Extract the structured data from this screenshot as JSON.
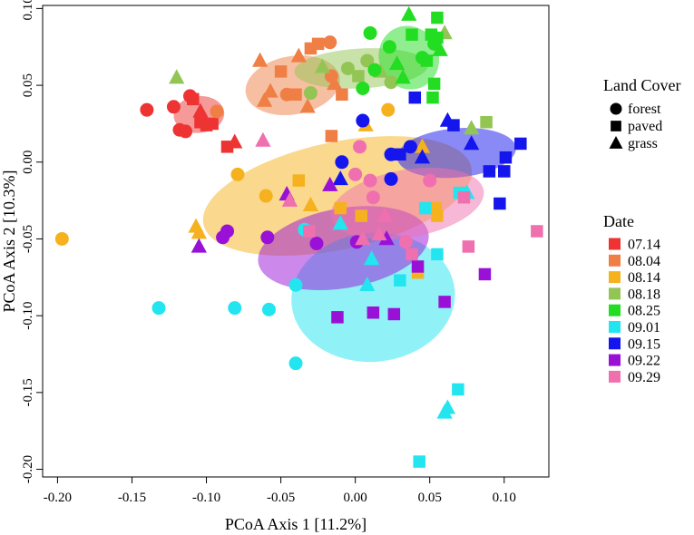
{
  "chart_data": {
    "type": "scatter",
    "title": "",
    "xlabel": "PCoA Axis 1 [11.2%]",
    "ylabel": "PCoA Axis 2 [10.3%]",
    "xlim": [
      -0.21,
      0.13
    ],
    "ylim": [
      -0.205,
      0.102
    ],
    "xticks": [
      -0.2,
      -0.15,
      -0.1,
      -0.05,
      0.0,
      0.05,
      0.1
    ],
    "xtick_labels": [
      "-0.20",
      "-0.15",
      "-0.10",
      "-0.05",
      "0.00",
      "0.05",
      "0.10"
    ],
    "yticks": [
      -0.2,
      -0.15,
      -0.1,
      -0.05,
      0.0,
      0.05,
      0.1
    ],
    "ytick_labels": [
      "-0.20",
      "-0.15",
      "-0.10",
      "-0.05",
      "0.00",
      "0.05",
      "0.10"
    ],
    "grid": false,
    "legend_landcover": {
      "title": "Land Cover",
      "items": [
        {
          "label": "forest",
          "shape": "circle"
        },
        {
          "label": "paved",
          "shape": "square"
        },
        {
          "label": "grass",
          "shape": "triangle"
        }
      ]
    },
    "legend_date": {
      "title": "Date",
      "items": [
        {
          "label": "07.14",
          "color": "#EE3333"
        },
        {
          "label": "08.04",
          "color": "#F07F45"
        },
        {
          "label": "08.14",
          "color": "#F5B21E"
        },
        {
          "label": "08.18",
          "color": "#93C555"
        },
        {
          "label": "08.25",
          "color": "#22DD22"
        },
        {
          "label": "09.01",
          "color": "#22E5F0"
        },
        {
          "label": "09.15",
          "color": "#1515EE"
        },
        {
          "label": "09.22",
          "color": "#9911D6"
        },
        {
          "label": "09.29",
          "color": "#F06FAF"
        }
      ]
    },
    "series": [
      {
        "name": "07.14",
        "color": "#EE3333",
        "ellipse": {
          "cx": -0.105,
          "cy": 0.031,
          "rx": 0.017,
          "ry": 0.012,
          "angle": -5
        },
        "points": [
          {
            "x": -0.14,
            "y": 0.034,
            "shape": "circle"
          },
          {
            "x": -0.122,
            "y": 0.036,
            "shape": "circle"
          },
          {
            "x": -0.118,
            "y": 0.021,
            "shape": "circle"
          },
          {
            "x": -0.114,
            "y": 0.02,
            "shape": "circle"
          },
          {
            "x": -0.111,
            "y": 0.043,
            "shape": "circle"
          },
          {
            "x": -0.109,
            "y": 0.041,
            "shape": "square"
          },
          {
            "x": -0.104,
            "y": 0.026,
            "shape": "square"
          },
          {
            "x": -0.1,
            "y": 0.024,
            "shape": "square"
          },
          {
            "x": -0.096,
            "y": 0.025,
            "shape": "square"
          },
          {
            "x": -0.104,
            "y": 0.033,
            "shape": "triangle"
          },
          {
            "x": -0.086,
            "y": 0.01,
            "shape": "square"
          },
          {
            "x": -0.081,
            "y": 0.013,
            "shape": "triangle"
          }
        ]
      },
      {
        "name": "08.04",
        "color": "#F07F45",
        "ellipse": {
          "cx": -0.042,
          "cy": 0.05,
          "rx": 0.032,
          "ry": 0.019,
          "angle": -10
        },
        "points": [
          {
            "x": -0.093,
            "y": 0.033,
            "shape": "circle"
          },
          {
            "x": -0.064,
            "y": 0.066,
            "shape": "triangle"
          },
          {
            "x": -0.061,
            "y": 0.04,
            "shape": "triangle"
          },
          {
            "x": -0.057,
            "y": 0.046,
            "shape": "triangle"
          },
          {
            "x": -0.05,
            "y": 0.059,
            "shape": "square"
          },
          {
            "x": -0.046,
            "y": 0.044,
            "shape": "circle"
          },
          {
            "x": -0.04,
            "y": 0.044,
            "shape": "square"
          },
          {
            "x": -0.038,
            "y": 0.069,
            "shape": "triangle"
          },
          {
            "x": -0.032,
            "y": 0.036,
            "shape": "triangle"
          },
          {
            "x": -0.03,
            "y": 0.074,
            "shape": "square"
          },
          {
            "x": -0.025,
            "y": 0.077,
            "shape": "square"
          },
          {
            "x": -0.017,
            "y": 0.078,
            "shape": "circle"
          },
          {
            "x": -0.016,
            "y": 0.056,
            "shape": "circle"
          },
          {
            "x": -0.014,
            "y": 0.051,
            "shape": "triangle"
          },
          {
            "x": -0.009,
            "y": 0.044,
            "shape": "square"
          },
          {
            "x": -0.016,
            "y": 0.017,
            "shape": "square"
          }
        ]
      },
      {
        "name": "08.14",
        "color": "#F5B21E",
        "ellipse": {
          "cx": -0.012,
          "cy": -0.022,
          "rx": 0.092,
          "ry": 0.035,
          "angle": -12
        },
        "points": [
          {
            "x": -0.197,
            "y": -0.05,
            "shape": "circle"
          },
          {
            "x": -0.107,
            "y": -0.042,
            "shape": "triangle"
          },
          {
            "x": -0.105,
            "y": -0.046,
            "shape": "triangle"
          },
          {
            "x": -0.079,
            "y": -0.008,
            "shape": "circle"
          },
          {
            "x": -0.06,
            "y": -0.022,
            "shape": "circle"
          },
          {
            "x": -0.038,
            "y": -0.012,
            "shape": "square"
          },
          {
            "x": -0.03,
            "y": -0.028,
            "shape": "triangle"
          },
          {
            "x": -0.01,
            "y": -0.03,
            "shape": "square"
          },
          {
            "x": 0.004,
            "y": -0.035,
            "shape": "square"
          },
          {
            "x": 0.007,
            "y": 0.024,
            "shape": "triangle"
          },
          {
            "x": 0.022,
            "y": 0.034,
            "shape": "circle"
          },
          {
            "x": 0.045,
            "y": 0.01,
            "shape": "triangle"
          },
          {
            "x": 0.054,
            "y": -0.03,
            "shape": "square"
          },
          {
            "x": 0.055,
            "y": -0.035,
            "shape": "square"
          },
          {
            "x": 0.042,
            "y": -0.072,
            "shape": "square"
          }
        ]
      },
      {
        "name": "08.18",
        "color": "#93C555",
        "ellipse": {
          "cx": 0.004,
          "cy": 0.061,
          "rx": 0.045,
          "ry": 0.013,
          "angle": -3
        },
        "points": [
          {
            "x": -0.12,
            "y": 0.055,
            "shape": "triangle"
          },
          {
            "x": -0.03,
            "y": 0.045,
            "shape": "circle"
          },
          {
            "x": -0.022,
            "y": 0.062,
            "shape": "triangle"
          },
          {
            "x": -0.005,
            "y": 0.061,
            "shape": "circle"
          },
          {
            "x": 0.002,
            "y": 0.056,
            "shape": "square"
          },
          {
            "x": 0.008,
            "y": 0.066,
            "shape": "circle"
          },
          {
            "x": 0.017,
            "y": 0.059,
            "shape": "triangle"
          },
          {
            "x": 0.024,
            "y": 0.052,
            "shape": "circle"
          },
          {
            "x": 0.06,
            "y": 0.084,
            "shape": "triangle"
          },
          {
            "x": 0.078,
            "y": 0.022,
            "shape": "triangle"
          },
          {
            "x": 0.088,
            "y": 0.026,
            "shape": "square"
          }
        ]
      },
      {
        "name": "08.25",
        "color": "#22DD22",
        "ellipse": {
          "cx": 0.036,
          "cy": 0.068,
          "rx": 0.02,
          "ry": 0.021,
          "angle": -25
        },
        "points": [
          {
            "x": 0.01,
            "y": 0.084,
            "shape": "circle"
          },
          {
            "x": 0.013,
            "y": 0.06,
            "shape": "circle"
          },
          {
            "x": 0.023,
            "y": 0.075,
            "shape": "circle"
          },
          {
            "x": 0.028,
            "y": 0.064,
            "shape": "triangle"
          },
          {
            "x": 0.032,
            "y": 0.055,
            "shape": "triangle"
          },
          {
            "x": 0.036,
            "y": 0.096,
            "shape": "triangle"
          },
          {
            "x": 0.038,
            "y": 0.083,
            "shape": "square"
          },
          {
            "x": 0.045,
            "y": 0.068,
            "shape": "circle"
          },
          {
            "x": 0.051,
            "y": 0.083,
            "shape": "square"
          },
          {
            "x": 0.055,
            "y": 0.094,
            "shape": "square"
          },
          {
            "x": 0.055,
            "y": 0.081,
            "shape": "square"
          },
          {
            "x": 0.053,
            "y": 0.077,
            "shape": "circle"
          },
          {
            "x": 0.057,
            "y": 0.073,
            "shape": "triangle"
          },
          {
            "x": 0.048,
            "y": 0.066,
            "shape": "square"
          },
          {
            "x": 0.053,
            "y": 0.051,
            "shape": "square"
          },
          {
            "x": 0.052,
            "y": 0.042,
            "shape": "square"
          },
          {
            "x": 0.005,
            "y": 0.048,
            "shape": "circle"
          }
        ]
      },
      {
        "name": "09.01",
        "color": "#22E5F0",
        "ellipse": {
          "cx": 0.012,
          "cy": -0.088,
          "rx": 0.055,
          "ry": 0.042,
          "angle": -5
        },
        "points": [
          {
            "x": -0.132,
            "y": -0.095,
            "shape": "circle"
          },
          {
            "x": -0.081,
            "y": -0.095,
            "shape": "circle"
          },
          {
            "x": -0.058,
            "y": -0.096,
            "shape": "circle"
          },
          {
            "x": -0.04,
            "y": -0.131,
            "shape": "circle"
          },
          {
            "x": -0.04,
            "y": -0.08,
            "shape": "circle"
          },
          {
            "x": -0.034,
            "y": -0.044,
            "shape": "circle"
          },
          {
            "x": -0.01,
            "y": -0.04,
            "shape": "triangle"
          },
          {
            "x": 0.008,
            "y": -0.08,
            "shape": "triangle"
          },
          {
            "x": 0.011,
            "y": -0.063,
            "shape": "triangle"
          },
          {
            "x": 0.03,
            "y": -0.077,
            "shape": "square"
          },
          {
            "x": 0.047,
            "y": -0.03,
            "shape": "square"
          },
          {
            "x": 0.055,
            "y": -0.06,
            "shape": "square"
          },
          {
            "x": 0.043,
            "y": -0.195,
            "shape": "square"
          },
          {
            "x": 0.06,
            "y": -0.163,
            "shape": "triangle"
          },
          {
            "x": 0.062,
            "y": -0.16,
            "shape": "triangle"
          },
          {
            "x": 0.069,
            "y": -0.148,
            "shape": "square"
          },
          {
            "x": 0.07,
            "y": -0.02,
            "shape": "square"
          },
          {
            "x": 0.075,
            "y": -0.02,
            "shape": "triangle"
          }
        ]
      },
      {
        "name": "09.15",
        "color": "#1515EE",
        "ellipse": {
          "cx": 0.068,
          "cy": 0.006,
          "rx": 0.04,
          "ry": 0.016,
          "angle": -5
        },
        "points": [
          {
            "x": -0.009,
            "y": 0.0,
            "shape": "circle"
          },
          {
            "x": -0.01,
            "y": -0.011,
            "shape": "triangle"
          },
          {
            "x": 0.005,
            "y": 0.027,
            "shape": "circle"
          },
          {
            "x": 0.024,
            "y": -0.011,
            "shape": "circle"
          },
          {
            "x": 0.024,
            "y": 0.005,
            "shape": "circle"
          },
          {
            "x": 0.03,
            "y": 0.005,
            "shape": "square"
          },
          {
            "x": 0.037,
            "y": 0.01,
            "shape": "circle"
          },
          {
            "x": 0.04,
            "y": 0.042,
            "shape": "square"
          },
          {
            "x": 0.045,
            "y": 0.003,
            "shape": "triangle"
          },
          {
            "x": 0.062,
            "y": 0.027,
            "shape": "triangle"
          },
          {
            "x": 0.066,
            "y": 0.024,
            "shape": "square"
          },
          {
            "x": 0.078,
            "y": 0.012,
            "shape": "triangle"
          },
          {
            "x": 0.09,
            "y": -0.006,
            "shape": "square"
          },
          {
            "x": 0.097,
            "y": -0.027,
            "shape": "square"
          },
          {
            "x": 0.1,
            "y": -0.006,
            "shape": "square"
          },
          {
            "x": 0.101,
            "y": 0.003,
            "shape": "square"
          },
          {
            "x": 0.111,
            "y": 0.012,
            "shape": "square"
          }
        ]
      },
      {
        "name": "09.22",
        "color": "#9911D6",
        "ellipse": {
          "cx": -0.008,
          "cy": -0.056,
          "rx": 0.058,
          "ry": 0.026,
          "angle": -10
        },
        "points": [
          {
            "x": -0.105,
            "y": -0.055,
            "shape": "triangle"
          },
          {
            "x": -0.089,
            "y": -0.049,
            "shape": "circle"
          },
          {
            "x": -0.086,
            "y": -0.045,
            "shape": "circle"
          },
          {
            "x": -0.059,
            "y": -0.049,
            "shape": "circle"
          },
          {
            "x": -0.046,
            "y": -0.021,
            "shape": "triangle"
          },
          {
            "x": -0.026,
            "y": -0.053,
            "shape": "circle"
          },
          {
            "x": -0.017,
            "y": -0.015,
            "shape": "triangle"
          },
          {
            "x": 0.001,
            "y": -0.052,
            "shape": "circle"
          },
          {
            "x": -0.012,
            "y": -0.101,
            "shape": "square"
          },
          {
            "x": 0.012,
            "y": -0.098,
            "shape": "square"
          },
          {
            "x": 0.026,
            "y": -0.099,
            "shape": "square"
          },
          {
            "x": 0.021,
            "y": -0.05,
            "shape": "triangle"
          },
          {
            "x": 0.06,
            "y": -0.091,
            "shape": "square"
          },
          {
            "x": 0.087,
            "y": -0.073,
            "shape": "square"
          },
          {
            "x": 0.042,
            "y": -0.068,
            "shape": "square"
          }
        ]
      },
      {
        "name": "09.29",
        "color": "#F06FAF",
        "ellipse": {
          "cx": 0.035,
          "cy": -0.027,
          "rx": 0.052,
          "ry": 0.022,
          "angle": -10
        },
        "points": [
          {
            "x": -0.062,
            "y": 0.014,
            "shape": "triangle"
          },
          {
            "x": -0.044,
            "y": -0.025,
            "shape": "triangle"
          },
          {
            "x": -0.031,
            "y": -0.045,
            "shape": "square"
          },
          {
            "x": 0.0,
            "y": -0.008,
            "shape": "circle"
          },
          {
            "x": 0.003,
            "y": 0.01,
            "shape": "circle"
          },
          {
            "x": 0.005,
            "y": -0.05,
            "shape": "triangle"
          },
          {
            "x": 0.01,
            "y": -0.012,
            "shape": "circle"
          },
          {
            "x": 0.012,
            "y": -0.023,
            "shape": "circle"
          },
          {
            "x": 0.016,
            "y": -0.047,
            "shape": "triangle"
          },
          {
            "x": 0.02,
            "y": -0.035,
            "shape": "triangle"
          },
          {
            "x": 0.034,
            "y": -0.052,
            "shape": "circle"
          },
          {
            "x": 0.038,
            "y": -0.06,
            "shape": "square"
          },
          {
            "x": 0.05,
            "y": -0.012,
            "shape": "circle"
          },
          {
            "x": 0.073,
            "y": -0.023,
            "shape": "square"
          },
          {
            "x": 0.076,
            "y": -0.055,
            "shape": "square"
          },
          {
            "x": 0.122,
            "y": -0.045,
            "shape": "square"
          }
        ]
      }
    ]
  }
}
